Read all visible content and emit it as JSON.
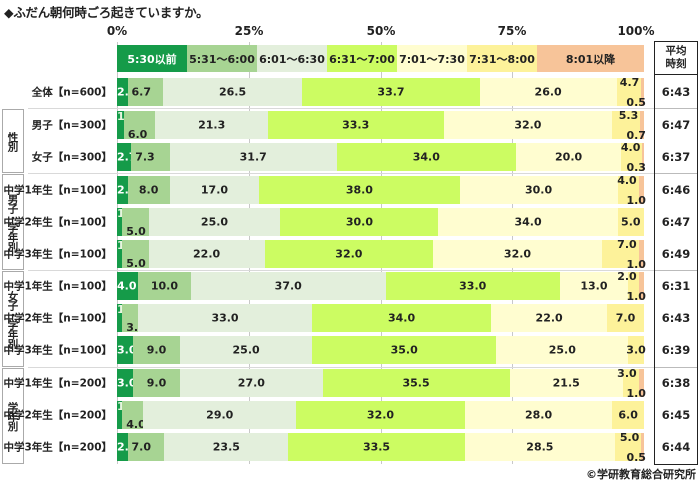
{
  "title": "◆ふだん朝何時ごろ起きていますか。",
  "credit": "©学研教育総合研究所",
  "axis": {
    "ticks": [
      "0%",
      "25%",
      "50%",
      "75%",
      "100%"
    ]
  },
  "average_header": {
    "line1": "平均",
    "line2": "時刻"
  },
  "colors": {
    "c0": "#159b49",
    "c1": "#a7d493",
    "c2": "#e3efdc",
    "c3": "#ccfc62",
    "c4": "#fffdd0",
    "c5": "#fdf29a",
    "c6": "#f7c499"
  },
  "legend": [
    "5:30以前",
    "5:31〜6:00",
    "6:01〜6:30",
    "6:31〜7:00",
    "7:01〜7:30",
    "7:31〜8:00",
    "8:01以降"
  ],
  "groups": [
    {
      "label": "性別"
    },
    {
      "label": "男子・学年別"
    },
    {
      "label": "女子・学年別"
    },
    {
      "label": "学年別"
    }
  ],
  "rows": [
    {
      "label": "全体【n=600】",
      "avg": "6:43"
    },
    {
      "label": "男子【n=300】",
      "avg": "6:47"
    },
    {
      "label": "女子【n=300】",
      "avg": "6:37"
    },
    {
      "label": "中学1年生【n=100】",
      "avg": "6:46"
    },
    {
      "label": "中学2年生【n=100】",
      "avg": "6:47"
    },
    {
      "label": "中学3年生【n=100】",
      "avg": "6:49"
    },
    {
      "label": "中学1年生【n=100】",
      "avg": "6:31"
    },
    {
      "label": "中学2年生【n=100】",
      "avg": "6:43"
    },
    {
      "label": "中学3年生【n=100】",
      "avg": "6:39"
    },
    {
      "label": "中学1年生【n=200】",
      "avg": "6:38"
    },
    {
      "label": "中学2年生【n=200】",
      "avg": "6:45"
    },
    {
      "label": "中学3年生【n=200】",
      "avg": "6:44"
    }
  ],
  "chart_data": {
    "type": "bar",
    "orientation": "horizontal",
    "stacked": "100%",
    "title": "◆ふだん朝何時ごろ起きていますか。",
    "xlabel": "",
    "ylabel": "",
    "xlim": [
      0,
      100
    ],
    "x_ticks": [
      "0%",
      "25%",
      "50%",
      "75%",
      "100%"
    ],
    "grid": true,
    "legend_position": "top",
    "categories": [
      "全体【n=600】",
      "男子【n=300】",
      "女子【n=300】",
      "男子・中学1年生【n=100】",
      "男子・中学2年生【n=100】",
      "男子・中学3年生【n=100】",
      "女子・中学1年生【n=100】",
      "女子・中学2年生【n=100】",
      "女子・中学3年生【n=100】",
      "中学1年生【n=200】",
      "中学2年生【n=200】",
      "中学3年生【n=200】"
    ],
    "series": [
      {
        "name": "5:30以前",
        "values": [
          "2.0",
          "1.3",
          "2.7",
          "2.0",
          "1.0",
          "1.0",
          "4.0",
          "1.0",
          "3.0",
          "3.0",
          "1.0",
          "2.0"
        ]
      },
      {
        "name": "5:31〜6:00",
        "values": [
          "6.7",
          "6.0",
          "7.3",
          "8.0",
          "5.0",
          "5.0",
          "10.0",
          "3.0",
          "9.0",
          "9.0",
          "4.0",
          "7.0"
        ]
      },
      {
        "name": "6:01〜6:30",
        "values": [
          "26.5",
          "21.3",
          "31.7",
          "17.0",
          "25.0",
          "22.0",
          "37.0",
          "33.0",
          "25.0",
          "27.0",
          "29.0",
          "23.5"
        ]
      },
      {
        "name": "6:31〜7:00",
        "values": [
          "33.7",
          "33.3",
          "34.0",
          "38.0",
          "30.0",
          "32.0",
          "33.0",
          "34.0",
          "35.0",
          "35.5",
          "32.0",
          "33.5"
        ]
      },
      {
        "name": "7:01〜7:30",
        "values": [
          "26.0",
          "32.0",
          "20.0",
          "30.0",
          "34.0",
          "32.0",
          "13.0",
          "22.0",
          "25.0",
          "21.5",
          "28.0",
          "28.5"
        ]
      },
      {
        "name": "7:31〜8:00",
        "values": [
          "4.7",
          "5.3",
          "4.0",
          "4.0",
          "5.0",
          "7.0",
          "2.0",
          "7.0",
          "3.0",
          "3.0",
          "6.0",
          "5.0"
        ]
      },
      {
        "name": "8:01以降",
        "values": [
          "0.5",
          "0.7",
          "0.3",
          "1.0",
          "0.0",
          "1.0",
          "1.0",
          "0.0",
          "0.0",
          "1.0",
          "0.0",
          "0.5"
        ]
      }
    ],
    "average_time": [
      "6:43",
      "6:47",
      "6:37",
      "6:46",
      "6:47",
      "6:49",
      "6:31",
      "6:43",
      "6:39",
      "6:38",
      "6:45",
      "6:44"
    ],
    "groups": [
      {
        "label": "性別",
        "rows": [
          1,
          2
        ]
      },
      {
        "label": "男子・学年別",
        "rows": [
          3,
          4,
          5
        ]
      },
      {
        "label": "女子・学年別",
        "rows": [
          6,
          7,
          8
        ]
      },
      {
        "label": "学年別",
        "rows": [
          9,
          10,
          11
        ]
      }
    ]
  }
}
